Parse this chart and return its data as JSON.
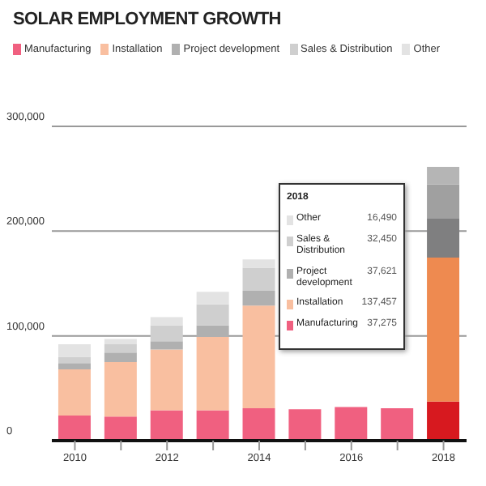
{
  "chart_data": {
    "type": "bar",
    "title": "SOLAR EMPLOYMENT GROWTH",
    "stacked": true,
    "legend": "top left",
    "grid": "y",
    "categories": [
      "2010",
      null,
      "2012",
      null,
      "2014",
      null,
      "2016",
      null,
      "2018"
    ],
    "ylim": [
      0,
      300000
    ],
    "yticks": [
      {
        "value": 0,
        "label": "0"
      },
      {
        "value": 100000,
        "label": "100,000"
      },
      {
        "value": 200000,
        "label": "200,000"
      },
      {
        "value": 300000,
        "label": "300,000"
      }
    ],
    "annotations": [
      "2018",
      "Other",
      "16,490",
      "Sales & Distribution",
      "32,450",
      "Project development",
      "37,621",
      "Installation",
      "137,457",
      "Manufacturing",
      "37,275"
    ],
    "series": [
      {
        "name": "Manufacturing",
        "color": "#f06080",
        "colors": [
          "#f06080",
          "#f06080",
          "#f06080",
          "#f06080",
          "#f06080",
          "#f06080",
          "#f06080",
          "#f06080",
          "#d7191f"
        ],
        "values": [
          24000,
          23000,
          29000,
          29000,
          31000,
          30000,
          32000,
          31000,
          37275
        ]
      },
      {
        "name": "Installation",
        "color": "#f9bfa0",
        "colors": [
          "#f9bfa0",
          "#f9bfa0",
          "#f9bfa0",
          "#f9bfa0",
          "#f9bfa0",
          "#f9bfa0",
          "#f9bfa0",
          "#f9bfa0",
          "#ee8a50"
        ],
        "values": [
          44000,
          52000,
          58000,
          70000,
          98000,
          null,
          null,
          null,
          137457
        ]
      },
      {
        "name": "Project development",
        "color": "#b0b0b0",
        "colors": [
          "#b0b0b0",
          "#b0b0b0",
          "#b0b0b0",
          "#b0b0b0",
          "#b0b0b0",
          "#b0b0b0",
          "#b0b0b0",
          "#b0b0b0",
          "#7f7f80"
        ],
        "values": [
          6000,
          9000,
          8000,
          11000,
          14000,
          null,
          null,
          null,
          37621
        ]
      },
      {
        "name": "Sales & Distribution",
        "color": "#cfcfcf",
        "colors": [
          "#cfcfcf",
          "#cfcfcf",
          "#cfcfcf",
          "#cfcfcf",
          "#cfcfcf",
          "#cfcfcf",
          "#cfcfcf",
          "#cfcfcf",
          "#a0a0a0"
        ],
        "values": [
          6000,
          8000,
          15000,
          20000,
          22000,
          null,
          null,
          null,
          32450
        ]
      },
      {
        "name": "Other",
        "color": "#e3e3e3",
        "colors": [
          "#e3e3e3",
          "#e3e3e3",
          "#e3e3e3",
          "#e3e3e3",
          "#e3e3e3",
          "#e3e3e3",
          "#e3e3e3",
          "#e3e3e3",
          "#b5b5b5"
        ],
        "values": [
          12000,
          5000,
          8000,
          12000,
          8000,
          null,
          null,
          null,
          16490
        ]
      }
    ]
  }
}
